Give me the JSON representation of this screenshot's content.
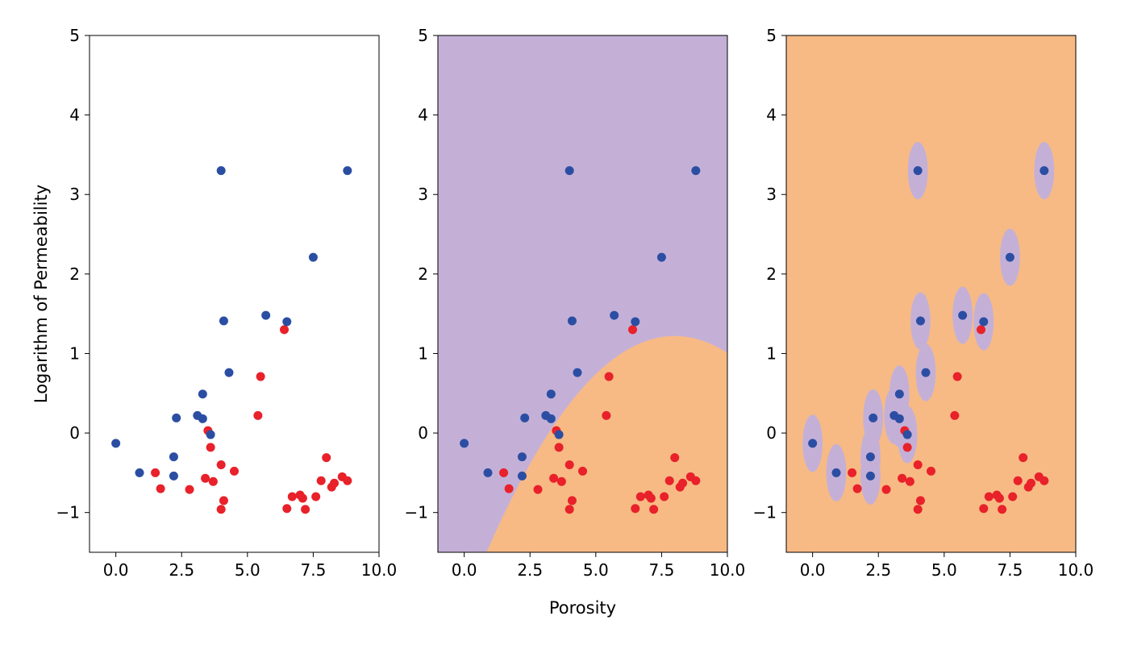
{
  "chart_data": {
    "type": "scatter",
    "shared": {
      "xlabel": "Porosity",
      "ylabel": "Logarithm of Permeability",
      "xlim": [
        -1,
        10
      ],
      "ylim": [
        -1.5,
        5
      ],
      "xticks": [
        "0.0",
        "2.5",
        "5.0",
        "7.5",
        "10.0"
      ],
      "yticks": [
        "−1",
        "0",
        "1",
        "2",
        "3",
        "4",
        "5"
      ]
    },
    "colors": {
      "class_blue": "#2b4ea3",
      "class_red": "#e8212a",
      "region_purple": "#c4b0d7",
      "region_orange": "#f7ba84"
    },
    "series": [
      {
        "color": "#2b4ea3",
        "points": [
          [
            0.0,
            -0.13
          ],
          [
            0.9,
            -0.5
          ],
          [
            2.2,
            -0.3
          ],
          [
            2.2,
            -0.54
          ],
          [
            2.3,
            0.19
          ],
          [
            3.1,
            0.22
          ],
          [
            3.3,
            0.49
          ],
          [
            3.3,
            0.18
          ],
          [
            3.6,
            -0.02
          ],
          [
            4.0,
            3.3
          ],
          [
            4.1,
            1.41
          ],
          [
            4.3,
            0.76
          ],
          [
            5.7,
            1.48
          ],
          [
            6.5,
            1.4
          ],
          [
            7.5,
            2.21
          ],
          [
            8.8,
            3.3
          ]
        ]
      },
      {
        "color": "#e8212a",
        "points": [
          [
            1.5,
            -0.5
          ],
          [
            1.7,
            -0.7
          ],
          [
            2.8,
            -0.71
          ],
          [
            3.4,
            -0.57
          ],
          [
            3.5,
            0.03
          ],
          [
            3.6,
            -0.18
          ],
          [
            3.7,
            -0.61
          ],
          [
            4.0,
            -0.4
          ],
          [
            4.0,
            -0.96
          ],
          [
            4.1,
            -0.85
          ],
          [
            4.5,
            -0.48
          ],
          [
            5.4,
            0.22
          ],
          [
            5.5,
            0.71
          ],
          [
            6.4,
            1.3
          ],
          [
            6.5,
            -0.95
          ],
          [
            6.7,
            -0.8
          ],
          [
            7.0,
            -0.78
          ],
          [
            7.1,
            -0.82
          ],
          [
            7.2,
            -0.96
          ],
          [
            7.6,
            -0.8
          ],
          [
            7.8,
            -0.6
          ],
          [
            8.0,
            -0.31
          ],
          [
            8.2,
            -0.68
          ],
          [
            8.3,
            -0.63
          ],
          [
            8.6,
            -0.55
          ],
          [
            8.8,
            -0.6
          ]
        ]
      }
    ],
    "panels": [
      {
        "name": "raw",
        "background": "none",
        "show_ylabel": true,
        "show_xlabel": false
      },
      {
        "name": "smooth-boundary",
        "background": "#c4b0d7",
        "region": "#f7ba84",
        "boundary": {
          "vertex_x": 8.0,
          "vertex_y": 1.22,
          "at_x": 0.85,
          "at_y": -1.5
        },
        "show_ylabel": false,
        "show_xlabel": true
      },
      {
        "name": "local-regions",
        "background": "#f7ba84",
        "region": "#c4b0d7",
        "ellipse_radius": [
          0.38,
          0.36
        ],
        "show_ylabel": false,
        "show_xlabel": false
      }
    ]
  }
}
